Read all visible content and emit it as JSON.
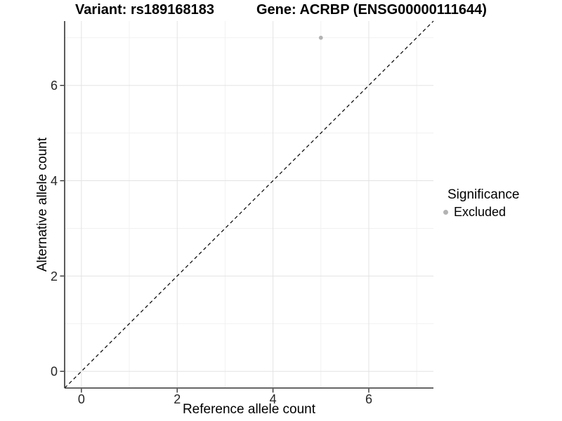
{
  "title": {
    "variant": "Variant: rs189168183",
    "gene": "Gene: ACRBP (ENSG00000111644)"
  },
  "axes": {
    "x": {
      "label": "Reference allele count",
      "ticks": [
        "0",
        "2",
        "4",
        "6"
      ]
    },
    "y": {
      "label": "Alternative allele count",
      "ticks": [
        "0",
        "2",
        "4",
        "6"
      ]
    }
  },
  "legend": {
    "title": "Significance",
    "items": [
      {
        "label": "Excluded",
        "color": "#b3b3b3"
      }
    ]
  },
  "colors": {
    "background": "#ffffff",
    "major_grid": "#e3e3e3",
    "minor_grid": "#f1f1f1",
    "axis_line": "#333333",
    "tick_text": "#262626",
    "point": "#b3b3b3",
    "reference_line": "#000000"
  },
  "chart_data": {
    "type": "scatter",
    "title": "Variant: rs189168183   Gene: ACRBP (ENSG00000111644)",
    "xlabel": "Reference allele count",
    "ylabel": "Alternative allele count",
    "xlim": [
      -0.35,
      7.35
    ],
    "ylim": [
      -0.35,
      7.35
    ],
    "x_ticks": [
      0,
      2,
      4,
      6
    ],
    "y_ticks": [
      0,
      2,
      4,
      6
    ],
    "x_minor_ticks": [
      1,
      3,
      5,
      7
    ],
    "y_minor_ticks": [
      1,
      3,
      5,
      7
    ],
    "grid": true,
    "legend_position": "right",
    "series": [
      {
        "name": "Excluded",
        "color": "#b3b3b3",
        "points": [
          {
            "x": 5,
            "y": 7
          }
        ]
      }
    ],
    "reference_line": {
      "type": "abline",
      "slope": 1,
      "intercept": 0,
      "style": "dashed",
      "color": "#000000"
    }
  }
}
